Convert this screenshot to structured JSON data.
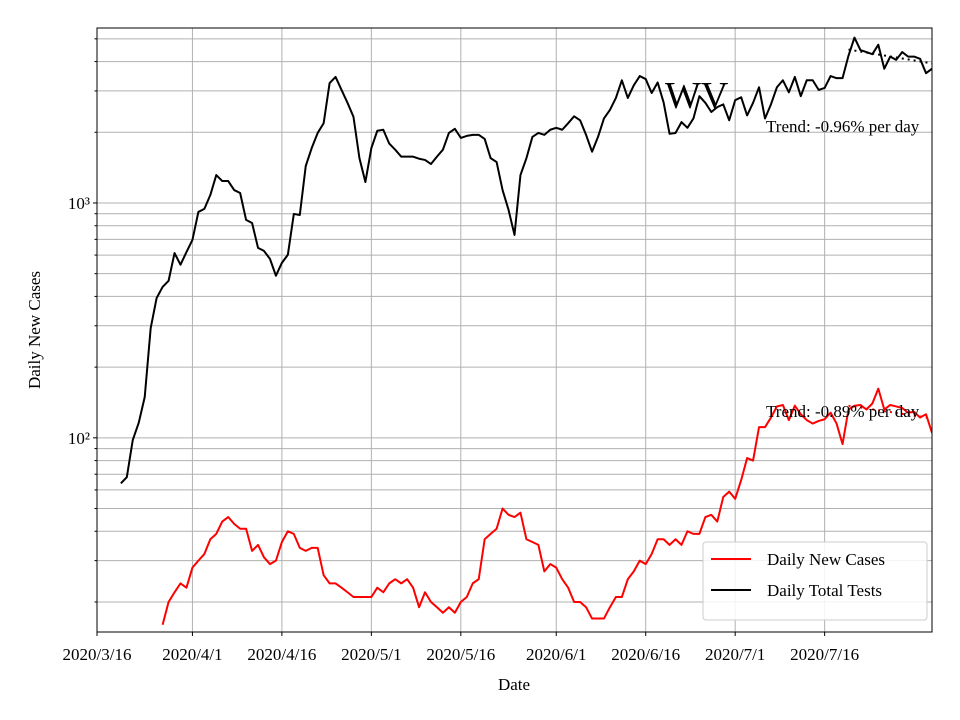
{
  "chart_data": {
    "type": "line",
    "y_label": "Daily New Cases",
    "x_label": "Date",
    "annotation": "WV",
    "log_y": true,
    "grid": true,
    "legend": "lower right",
    "x": [
      "2020/3/20",
      "2020/3/21",
      "2020/3/22",
      "2020/3/23",
      "2020/3/24",
      "2020/3/25",
      "2020/3/26",
      "2020/3/27",
      "2020/3/28",
      "2020/3/29",
      "2020/3/30",
      "2020/3/31",
      "2020/4/1",
      "2020/4/2",
      "2020/4/3",
      "2020/4/4",
      "2020/4/5",
      "2020/4/6",
      "2020/4/7",
      "2020/4/8",
      "2020/4/9",
      "2020/4/10",
      "2020/4/11",
      "2020/4/12",
      "2020/4/13",
      "2020/4/14",
      "2020/4/15",
      "2020/4/16",
      "2020/4/17",
      "2020/4/18",
      "2020/4/19",
      "2020/4/20",
      "2020/4/21",
      "2020/4/22",
      "2020/4/23",
      "2020/4/24",
      "2020/4/25",
      "2020/4/26",
      "2020/4/27",
      "2020/4/28",
      "2020/4/29",
      "2020/4/30",
      "2020/5/1",
      "2020/5/2",
      "2020/5/3",
      "2020/5/4",
      "2020/5/5",
      "2020/5/6",
      "2020/5/7",
      "2020/5/8",
      "2020/5/9",
      "2020/5/10",
      "2020/5/11",
      "2020/5/12",
      "2020/5/13",
      "2020/5/14",
      "2020/5/15",
      "2020/5/16",
      "2020/5/17",
      "2020/5/18",
      "2020/5/19",
      "2020/5/20",
      "2020/5/21",
      "2020/5/22",
      "2020/5/23",
      "2020/5/24",
      "2020/5/25",
      "2020/5/26",
      "2020/5/27",
      "2020/5/28",
      "2020/5/29",
      "2020/5/30",
      "2020/5/31",
      "2020/6/1",
      "2020/6/2",
      "2020/6/3",
      "2020/6/4",
      "2020/6/5",
      "2020/6/6",
      "2020/6/7",
      "2020/6/8",
      "2020/6/9",
      "2020/6/10",
      "2020/6/11",
      "2020/6/12",
      "2020/6/13",
      "2020/6/14",
      "2020/6/15",
      "2020/6/16",
      "2020/6/17",
      "2020/6/18",
      "2020/6/19",
      "2020/6/20",
      "2020/6/21",
      "2020/6/22",
      "2020/6/23",
      "2020/6/24",
      "2020/6/25",
      "2020/6/26",
      "2020/6/27",
      "2020/6/28",
      "2020/6/29",
      "2020/6/30",
      "2020/7/1",
      "2020/7/2",
      "2020/7/3",
      "2020/7/4",
      "2020/7/5",
      "2020/7/6",
      "2020/7/7",
      "2020/7/8",
      "2020/7/9",
      "2020/7/10",
      "2020/7/11",
      "2020/7/12",
      "2020/7/13",
      "2020/7/14",
      "2020/7/15",
      "2020/7/16",
      "2020/7/17",
      "2020/7/18",
      "2020/7/19",
      "2020/7/20",
      "2020/7/21",
      "2020/7/22",
      "2020/7/23",
      "2020/7/24",
      "2020/7/25",
      "2020/7/26",
      "2020/7/27",
      "2020/7/28",
      "2020/7/29",
      "2020/7/30",
      "2020/7/31",
      "2020/8/1",
      "2020/8/2",
      "2020/8/3"
    ],
    "series": [
      {
        "name": "Daily New Cases",
        "color": "#ff0000",
        "values": [
          null,
          null,
          null,
          null,
          null,
          null,
          null,
          16,
          20,
          22,
          24,
          23,
          28,
          30,
          32,
          37,
          39,
          44,
          46,
          43,
          41,
          41,
          33,
          35,
          31,
          29,
          30,
          36,
          40,
          39,
          34,
          33,
          34,
          34,
          26,
          24,
          24,
          23,
          22,
          21,
          21,
          21,
          21,
          23,
          22,
          24,
          25,
          24,
          25,
          23,
          19,
          22,
          20,
          19,
          18,
          19,
          18,
          20,
          21,
          24,
          25,
          37,
          39,
          41,
          50,
          47,
          46,
          48,
          37,
          36,
          35,
          27,
          29,
          28,
          25,
          23,
          20,
          20,
          19,
          17,
          17,
          17,
          19,
          21,
          21,
          25,
          27,
          30,
          29,
          32,
          37,
          37,
          35,
          37,
          35,
          40,
          39,
          39,
          46,
          47,
          44,
          56,
          59,
          55,
          66,
          82,
          80,
          111,
          111,
          122,
          136,
          138,
          119,
          137,
          126,
          119,
          115,
          118,
          120,
          128,
          115,
          94,
          132,
          137,
          138,
          132,
          140,
          162,
          132,
          138,
          136,
          134,
          128,
          129,
          122,
          126,
          105
        ]
      },
      {
        "name": "Daily Total Tests",
        "color": "#000000",
        "values": [
          64,
          68,
          98,
          116,
          149,
          293,
          394,
          439,
          466,
          612,
          546,
          618,
          696,
          916,
          944,
          1081,
          1315,
          1240,
          1240,
          1135,
          1103,
          847,
          822,
          644,
          625,
          578,
          490,
          556,
          602,
          898,
          889,
          1437,
          1714,
          1987,
          2186,
          3240,
          3440,
          3030,
          2670,
          2330,
          1552,
          1228,
          1714,
          2030,
          2050,
          1790,
          1686,
          1575,
          1575,
          1575,
          1543,
          1525,
          1465,
          1575,
          1686,
          1987,
          2070,
          1893,
          1930,
          1950,
          1950,
          1873,
          1552,
          1494,
          1135,
          935,
          731,
          1315,
          1552,
          1911,
          1987,
          1950,
          2050,
          2090,
          2050,
          2186,
          2340,
          2250,
          1950,
          1653,
          1911,
          2290,
          2490,
          2800,
          3330,
          2800,
          3170,
          3470,
          3370,
          2940,
          3260,
          2680,
          1970,
          1987,
          2210,
          2090,
          2290,
          2850,
          2670,
          2440,
          2560,
          2630,
          2250,
          2740,
          2820,
          2360,
          2670,
          3110,
          2290,
          2630,
          3110,
          3330,
          2960,
          3440,
          2850,
          3330,
          3330,
          3030,
          3090,
          3470,
          3400,
          3400,
          4240,
          5060,
          4480,
          4390,
          4300,
          4720,
          3730,
          4200,
          4070,
          4390,
          4200,
          4200,
          4110,
          3570,
          3730
        ]
      }
    ],
    "trends": [
      {
        "label": "Trend: -0.96% per day",
        "color": "#000000",
        "x": [
          "2020/7/20",
          "2020/8/3"
        ],
        "values": [
          4500,
          3930
        ]
      },
      {
        "label": "Trend: -0.89% per day",
        "color": "#ff0000",
        "x": [
          "2020/7/20",
          "2020/8/3"
        ],
        "values": [
          137,
          121
        ]
      }
    ],
    "xlim": [
      "2020/3/16",
      "2020/8/3"
    ],
    "xticks": [
      "2020/3/16",
      "2020/4/1",
      "2020/4/16",
      "2020/5/1",
      "2020/5/16",
      "2020/6/1",
      "2020/6/16",
      "2020/7/1",
      "2020/7/16"
    ],
    "ylim": [
      14.9,
      5560
    ],
    "yticks": [
      {
        "value": 100,
        "label": "10²"
      },
      {
        "value": 1000,
        "label": "10³"
      }
    ],
    "yminorticks": [
      20,
      30,
      40,
      50,
      60,
      70,
      80,
      90,
      200,
      300,
      400,
      500,
      600,
      700,
      800,
      900,
      2000,
      3000,
      4000,
      5000
    ]
  }
}
